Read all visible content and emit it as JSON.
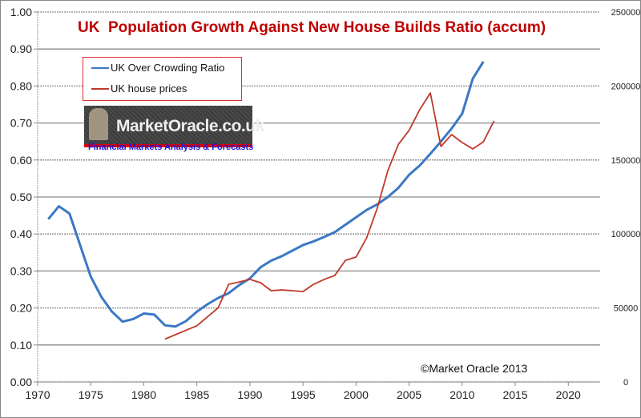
{
  "chart_data": {
    "type": "line",
    "title": "UK  Population Growth Against New House Builds Ratio (accum)",
    "xlabel": "",
    "ylabel": "",
    "xlim": [
      1970,
      2023
    ],
    "ylim": [
      0,
      1.0
    ],
    "y2lim": [
      0,
      250000
    ],
    "x_ticks": [
      "1970",
      "1975",
      "1980",
      "1985",
      "1990",
      "1995",
      "2000",
      "2005",
      "2010",
      "2015",
      "2020"
    ],
    "y_ticks": [
      "0.00",
      "0.10",
      "0.20",
      "0.30",
      "0.40",
      "0.50",
      "0.60",
      "0.70",
      "0.80",
      "0.90",
      "1.00"
    ],
    "y2_ticks": [
      "0",
      "50000",
      "100000",
      "150000",
      "200000",
      "250000"
    ],
    "grid": true,
    "legend_position": "top-left",
    "series": [
      {
        "name": "UK Over Crowding Ratio",
        "axis": "left",
        "color": "#3b78c4",
        "x": [
          1971,
          1972,
          1973,
          1974,
          1975,
          1976,
          1977,
          1978,
          1979,
          1980,
          1981,
          1982,
          1983,
          1984,
          1985,
          1986,
          1987,
          1988,
          1989,
          1990,
          1991,
          1992,
          1993,
          1994,
          1995,
          1996,
          1997,
          1998,
          1999,
          2000,
          2001,
          2002,
          2003,
          2004,
          2005,
          2006,
          2007,
          2008,
          2009,
          2010,
          2011,
          2012
        ],
        "values": [
          0.44,
          0.475,
          0.455,
          0.37,
          0.285,
          0.23,
          0.19,
          0.163,
          0.17,
          0.185,
          0.182,
          0.153,
          0.15,
          0.165,
          0.19,
          0.21,
          0.227,
          0.24,
          0.262,
          0.28,
          0.31,
          0.328,
          0.34,
          0.355,
          0.37,
          0.38,
          0.392,
          0.405,
          0.425,
          0.445,
          0.465,
          0.48,
          0.5,
          0.525,
          0.56,
          0.585,
          0.617,
          0.65,
          0.685,
          0.725,
          0.82,
          0.866
        ]
      },
      {
        "name": "UK house prices",
        "axis": "right",
        "color": "#c0392b",
        "x": [
          1982,
          1983,
          1984,
          1985,
          1986,
          1987,
          1988,
          1989,
          1990,
          1991,
          1992,
          1993,
          1994,
          1995,
          1996,
          1997,
          1998,
          1999,
          2000,
          2001,
          2002,
          2003,
          2004,
          2005,
          2006,
          2007,
          2008,
          2009,
          2010,
          2011,
          2012,
          2013
        ],
        "values": [
          29000,
          32000,
          35000,
          38000,
          44000,
          50000,
          66000,
          67600,
          69300,
          67100,
          61700,
          62200,
          61700,
          61100,
          66000,
          69300,
          72000,
          82200,
          84400,
          97400,
          117400,
          142900,
          160700,
          170000,
          184000,
          195300,
          159100,
          167200,
          161800,
          157500,
          162300,
          176400
        ]
      }
    ]
  },
  "logo": {
    "text": "MarketOracle.co.uk",
    "tagline": "Financial Markets Analysis & Forecasts"
  },
  "credit": "©Market Oracle 2013"
}
